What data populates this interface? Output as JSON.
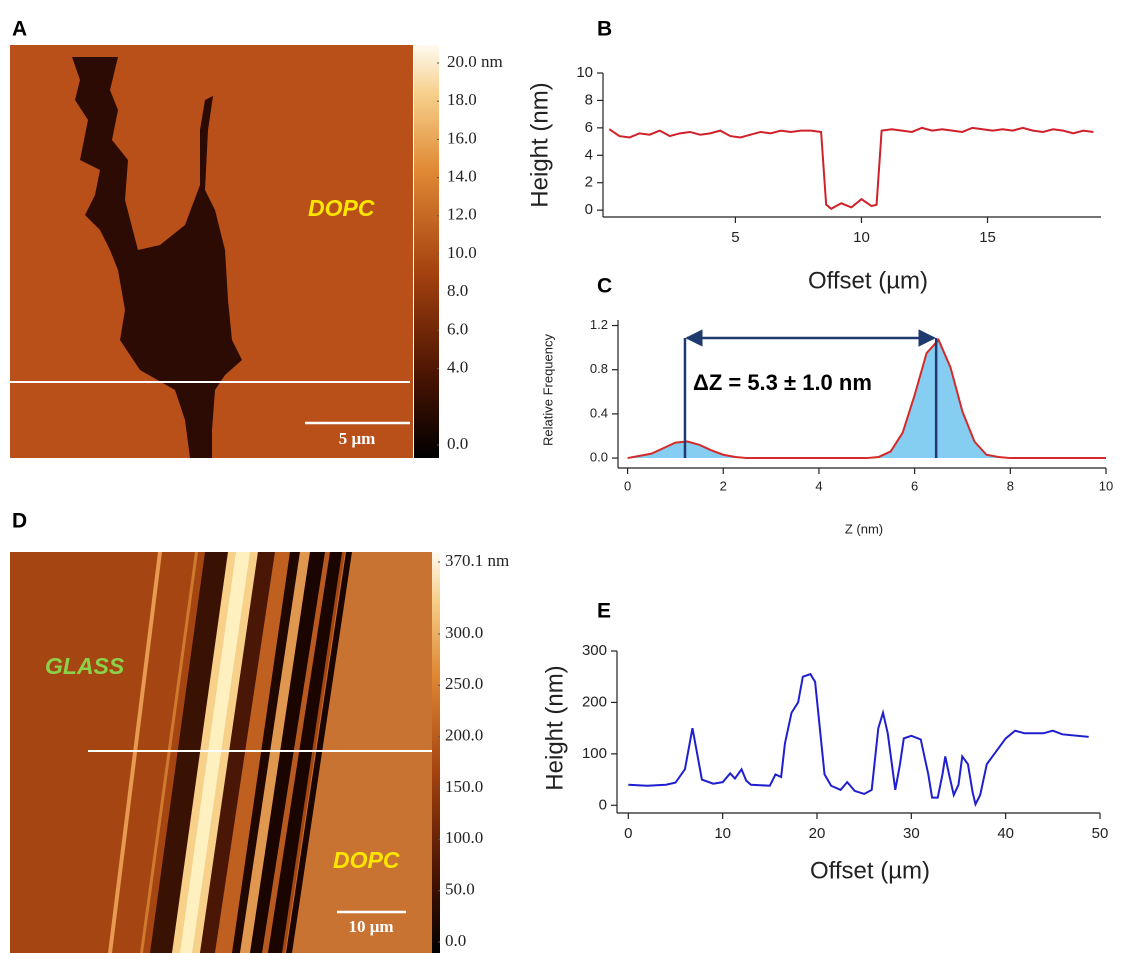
{
  "chart_data": [
    {
      "type": "image",
      "panel": "A",
      "label": "DOPC",
      "label_color": "#ffe600",
      "scale_bar": "5 μm",
      "colorbar": {
        "lim": [
          0,
          20
        ],
        "ticks": [
          {
            "value": 20,
            "label": "20.0 nm"
          },
          {
            "value": 18,
            "label": "18.0"
          },
          {
            "value": 16,
            "label": "16.0"
          },
          {
            "value": 14,
            "label": "14.0"
          },
          {
            "value": 12,
            "label": "12.0"
          },
          {
            "value": 10,
            "label": "10.0"
          },
          {
            "value": 8,
            "label": "8.0"
          },
          {
            "value": 6,
            "label": "6.0"
          },
          {
            "value": 4,
            "label": "4.0"
          },
          {
            "value": 0,
            "label": "0.0"
          }
        ]
      }
    },
    {
      "type": "line",
      "panel": "B",
      "x_label": "Offset (µm)",
      "y_label": "Height (nm)",
      "color": "#d0202a",
      "xlim": [
        -0.25,
        19.5
      ],
      "xticks": [
        5,
        10,
        15
      ],
      "ylim": [
        -0.5,
        10
      ],
      "yticks": [
        0,
        2,
        4,
        6,
        8,
        10
      ],
      "x": [
        0,
        0.4,
        0.8,
        1.2,
        1.6,
        2,
        2.4,
        2.8,
        3.2,
        3.6,
        4,
        4.4,
        4.8,
        5.2,
        5.6,
        6,
        6.4,
        6.8,
        7.2,
        7.6,
        8,
        8.4,
        8.6,
        8.8,
        9.2,
        9.6,
        10,
        10.4,
        10.6,
        10.8,
        11.2,
        11.6,
        12,
        12.4,
        12.8,
        13.2,
        13.6,
        14,
        14.4,
        14.8,
        15.2,
        15.6,
        16,
        16.4,
        16.8,
        17.2,
        17.6,
        18,
        18.4,
        18.8,
        19.2
      ],
      "values": [
        5.9,
        5.4,
        5.3,
        5.6,
        5.5,
        5.8,
        5.4,
        5.6,
        5.7,
        5.5,
        5.6,
        5.8,
        5.4,
        5.3,
        5.5,
        5.7,
        5.6,
        5.8,
        5.7,
        5.8,
        5.8,
        5.7,
        0.4,
        0.1,
        0.5,
        0.2,
        0.8,
        0.3,
        0.4,
        5.8,
        5.9,
        5.8,
        5.7,
        6.0,
        5.8,
        5.9,
        5.8,
        5.7,
        6.0,
        5.9,
        5.8,
        5.9,
        5.8,
        6.0,
        5.8,
        5.7,
        5.9,
        5.8,
        5.6,
        5.8,
        5.7
      ]
    },
    {
      "type": "area",
      "panel": "C",
      "x_label": "Z (nm)",
      "y_label": "Relative Frequency",
      "color": "#d42a2a",
      "fill_color": "#86cdf2",
      "annotation": "ΔZ = 5.3 ± 1.0 nm",
      "annotation_color": "#1f3a6e",
      "peak_x": [
        1.2,
        6.45
      ],
      "xlim": [
        -0.2,
        10
      ],
      "xticks": [
        0,
        2,
        4,
        6,
        8,
        10
      ],
      "ylim": [
        -0.09,
        1.25
      ],
      "yticks": [
        {
          "value": 0,
          "label": "0.0"
        },
        0.4,
        0.8,
        1.2
      ],
      "x": [
        0,
        0.25,
        0.5,
        0.75,
        1,
        1.25,
        1.5,
        1.75,
        2,
        2.25,
        2.5,
        2.75,
        3,
        3.25,
        3.5,
        3.75,
        4,
        4.25,
        4.5,
        4.75,
        5,
        5.25,
        5.5,
        5.75,
        6,
        6.25,
        6.5,
        6.75,
        7,
        7.25,
        7.5,
        7.75,
        8,
        8.25,
        8.5,
        8.75,
        9,
        9.25,
        9.5,
        9.75,
        10
      ],
      "values": [
        0,
        0.02,
        0.04,
        0.09,
        0.14,
        0.15,
        0.12,
        0.07,
        0.03,
        0.01,
        0,
        0,
        0,
        0,
        0,
        0,
        0,
        0,
        0,
        0,
        0,
        0.01,
        0.06,
        0.23,
        0.57,
        0.95,
        1.07,
        0.82,
        0.42,
        0.15,
        0.03,
        0.01,
        0,
        0,
        0,
        0,
        0,
        0,
        0,
        0,
        0
      ]
    },
    {
      "type": "image",
      "panel": "D",
      "label": "DOPC",
      "label_color": "#ffe600",
      "label2": "GLASS",
      "label2_color": "#8bd14a",
      "scale_bar": "10 μm",
      "colorbar": {
        "lim": [
          0,
          370.1
        ],
        "ticks": [
          {
            "value": 370.1,
            "label": "370.1 nm"
          },
          {
            "value": 300,
            "label": "300.0"
          },
          {
            "value": 250,
            "label": "250.0"
          },
          {
            "value": 200,
            "label": "200.0"
          },
          {
            "value": 150,
            "label": "150.0"
          },
          {
            "value": 100,
            "label": "100.0"
          },
          {
            "value": 50,
            "label": "50.0"
          },
          {
            "value": 0,
            "label": "0.0"
          }
        ]
      }
    },
    {
      "type": "line",
      "panel": "E",
      "x_label": "Offset (µm)",
      "y_label": "Height (nm)",
      "color": "#1f1fd0",
      "xlim": [
        -1.2,
        50
      ],
      "xticks": [
        0,
        10,
        20,
        30,
        40,
        50
      ],
      "ylim": [
        -15,
        300
      ],
      "yticks": [
        0,
        100,
        200,
        300
      ],
      "x": [
        0,
        2,
        4,
        5,
        6,
        6.8,
        7.3,
        7.8,
        9,
        10,
        10.8,
        11.3,
        12,
        12.5,
        13,
        15,
        15.6,
        16.2,
        16.6,
        17.3,
        18,
        18.5,
        19.3,
        19.8,
        20.3,
        20.8,
        21.5,
        22.5,
        23.2,
        24,
        25,
        25.8,
        26.5,
        27,
        27.5,
        28.3,
        28.8,
        29.2,
        30,
        31,
        31.8,
        32.2,
        32.8,
        33.3,
        33.6,
        34,
        34.5,
        35,
        35.4,
        36,
        36.5,
        36.8,
        37.3,
        38,
        39,
        40,
        41,
        42,
        44,
        45,
        46,
        48.8
      ],
      "values": [
        40,
        38,
        40,
        44,
        70,
        150,
        100,
        50,
        42,
        45,
        62,
        52,
        70,
        48,
        40,
        38,
        60,
        55,
        120,
        180,
        200,
        250,
        255,
        240,
        150,
        60,
        38,
        30,
        45,
        28,
        22,
        30,
        150,
        180,
        140,
        30,
        80,
        130,
        135,
        128,
        60,
        15,
        15,
        60,
        95,
        60,
        20,
        40,
        95,
        80,
        25,
        2,
        20,
        80,
        105,
        130,
        145,
        140,
        140,
        145,
        138,
        133
      ]
    }
  ]
}
